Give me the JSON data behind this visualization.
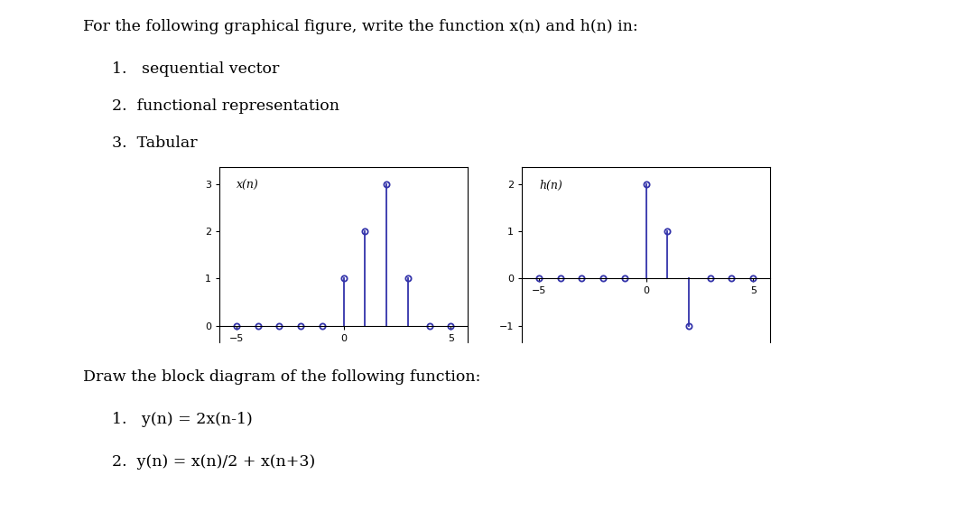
{
  "title_text": "For the following graphical figure, write the function x(n) and h(n) in:",
  "items": [
    "1.   sequential vector",
    "2.  functional representation",
    "3.  Tabular"
  ],
  "bottom_title": "Draw the block diagram of the following function:",
  "bottom_items": [
    "1.   y(n) = 2x(n-1)",
    "2.  y(n) = x(n)/2 + x(n+3)"
  ],
  "xn_label": "x(n)",
  "hn_label": "h(n)",
  "xn_n": [
    -5,
    -4,
    -3,
    -2,
    -1,
    0,
    1,
    2,
    3,
    4,
    5
  ],
  "xn_vals": [
    0,
    0,
    0,
    0,
    0,
    1,
    2,
    3,
    1,
    0,
    0
  ],
  "hn_n": [
    -5,
    -4,
    -3,
    -2,
    -1,
    0,
    1,
    2,
    3,
    4,
    5
  ],
  "hn_vals": [
    0,
    0,
    0,
    0,
    0,
    2,
    1,
    -1,
    0,
    0,
    0
  ],
  "stem_color": "#3333AA",
  "marker_color": "#3333AA",
  "bg_color": "#ffffff",
  "xn_xlim": [
    -5.8,
    5.8
  ],
  "xn_ylim": [
    -0.35,
    3.35
  ],
  "hn_xlim": [
    -5.8,
    5.8
  ],
  "hn_ylim": [
    -1.35,
    2.35
  ],
  "xn_yticks": [
    0,
    1,
    2,
    3
  ],
  "hn_yticks": [
    -1,
    0,
    1,
    2
  ],
  "xticks": [
    -5,
    0,
    5
  ],
  "font_size_title": 12.5,
  "font_size_items": 12.5,
  "font_size_bottom": 12.5
}
